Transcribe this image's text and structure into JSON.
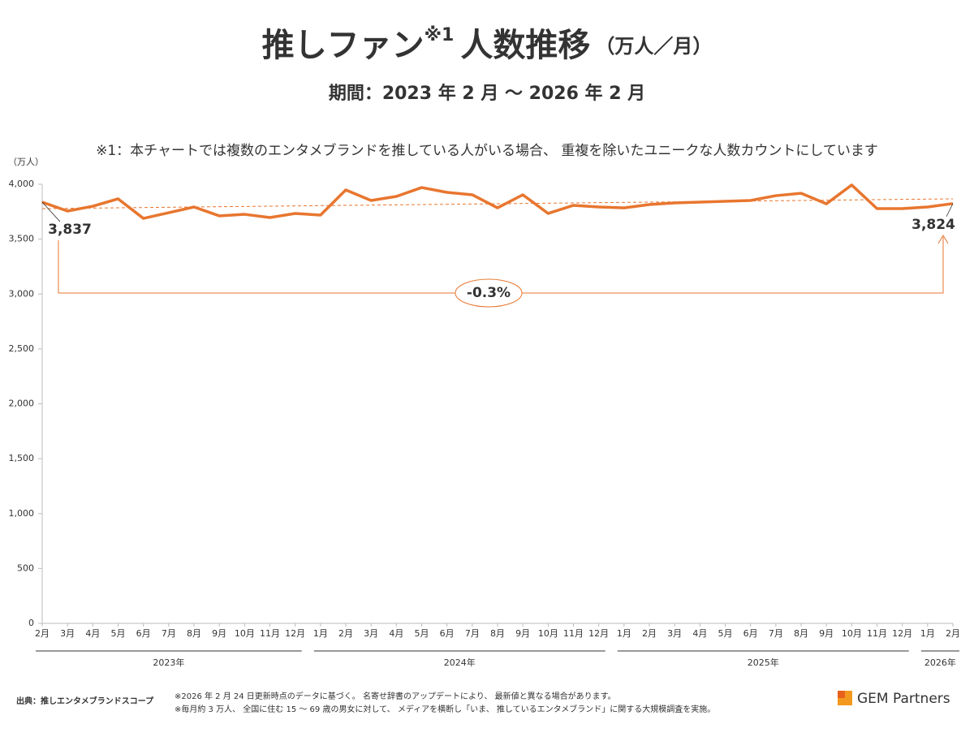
{
  "chart_data": {
    "type": "line",
    "title": "推しファン",
    "title_superscript": "※1",
    "title_main": "人数推移",
    "title_unit": "（万人／月）",
    "subtitle": "期間：2023 年 2 月 ～ 2026 年 2 月",
    "note": "※1：本チャートでは複数のエンタメブランドを推している人がいる場合、 重複を除いたユニークな人数カウントにしています",
    "y_axis_label": "（万人）",
    "categories": [
      "2月",
      "3月",
      "4月",
      "5月",
      "6月",
      "7月",
      "8月",
      "9月",
      "10月",
      "11月",
      "12月",
      "1月",
      "2月",
      "3月",
      "4月",
      "5月",
      "6月",
      "7月",
      "8月",
      "9月",
      "10月",
      "11月",
      "12月",
      "1月",
      "2月",
      "3月",
      "4月",
      "5月",
      "6月",
      "7月",
      "8月",
      "9月",
      "10月",
      "11月",
      "12月",
      "1月",
      "2月"
    ],
    "year_groups": [
      {
        "label": "2023年",
        "span": 11
      },
      {
        "label": "2024年",
        "span": 12
      },
      {
        "label": "2025年",
        "span": 12
      },
      {
        "label": "2026年",
        "span": 2
      }
    ],
    "series": [
      {
        "name": "推しファン人数",
        "color": "#e8762f",
        "values": [
          3837,
          3756,
          3800,
          3867,
          3689,
          3741,
          3793,
          3712,
          3726,
          3697,
          3734,
          3719,
          3948,
          3852,
          3889,
          3970,
          3926,
          3904,
          3785,
          3904,
          3734,
          3808,
          3793,
          3785,
          3815,
          3830,
          3837,
          3845,
          3852,
          3896,
          3918,
          3822,
          3993,
          3778,
          3778,
          3793,
          3824
        ],
        "value_labels": [
          "3,837",
          null,
          null,
          null,
          null,
          null,
          null,
          null,
          null,
          null,
          null,
          null,
          null,
          null,
          null,
          null,
          null,
          null,
          null,
          null,
          null,
          null,
          null,
          null,
          null,
          null,
          null,
          null,
          null,
          null,
          null,
          null,
          null,
          null,
          null,
          null,
          "3,824"
        ]
      }
    ],
    "trendline": {
      "values": [
        3778,
        3867
      ],
      "color": "#e8762f"
    },
    "change_label": "-0.3%",
    "ylim": [
      0,
      4000
    ],
    "yticks": [
      0,
      500,
      {
        "value": 1000,
        "label": "1,000"
      },
      {
        "value": 1500,
        "label": "1,500"
      },
      {
        "value": 2000,
        "label": "2,000"
      },
      {
        "value": 2500,
        "label": "2,500"
      },
      {
        "value": 3000,
        "label": "3,000"
      },
      {
        "value": 3500,
        "label": "3,500"
      },
      {
        "value": 4000,
        "label": "4,000"
      }
    ],
    "grid": false
  },
  "footer": {
    "source": "出典：推しエンタメブランドスコープ",
    "notes": [
      "※2026 年 2 月 24 日更新時点のデータに基づく。 名寄せ辞書のアップデートにより、 最新値と異なる場合があります。",
      "※毎月約 3 万人、 全国に住む 15 ～ 69 歳の男女に対して、 メディアを横断し「いま、 推しているエンタメブランド」に関する大規模調査を実施。"
    ],
    "logo": "GEM Partners"
  }
}
